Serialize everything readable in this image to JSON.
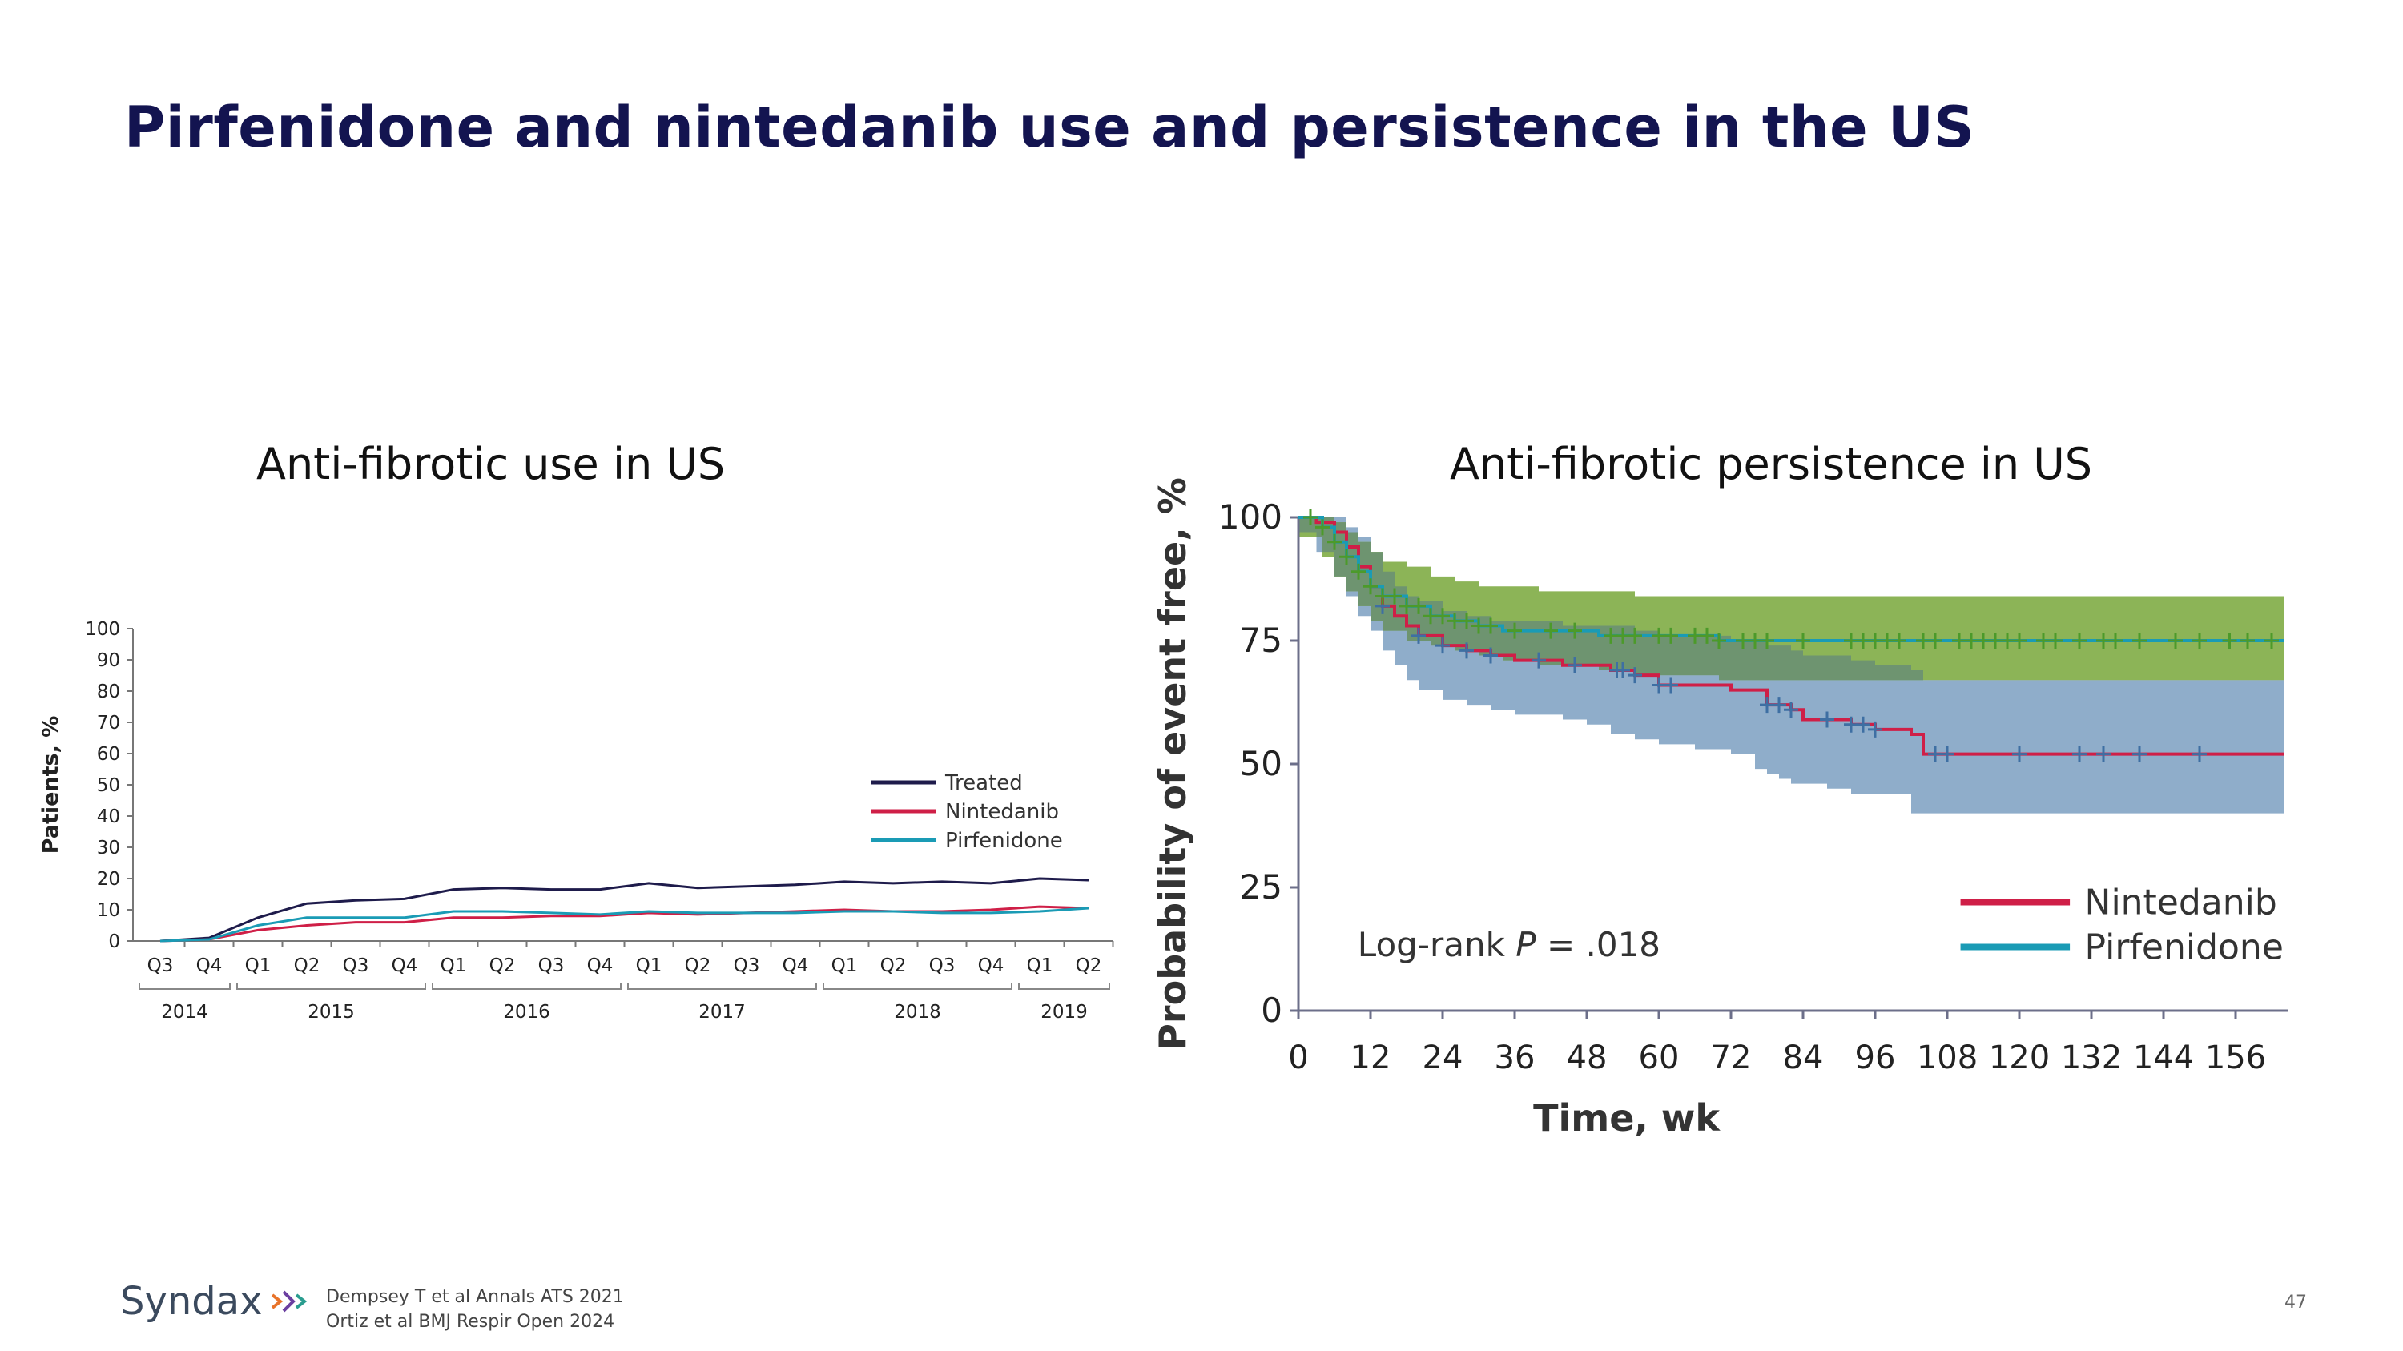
{
  "slide": {
    "title": "Pirfenidone and nintedanib use and persistence in the US",
    "page_number": "47",
    "logo_text": "Syndax",
    "references": [
      "Dempsey T et al Annals ATS 2021",
      "Ortiz et al BMJ Respir Open 2024"
    ]
  },
  "panels": {
    "left_title": "Anti-fibrotic use in US",
    "right_title": "Anti-fibrotic persistence in US"
  },
  "colors": {
    "title": "#131450",
    "treated": "#1e1b4b",
    "nintedanib": "#cf1f47",
    "pirfenidone": "#1a9bb5",
    "nintedanib_ci": "#8fadca",
    "pirfenidone_ci": "#8cb457",
    "overlap_ci": "#6e9470",
    "pirf_censor": "#4c9a2a",
    "nint_censor": "#3e6fa3"
  },
  "chart_data": [
    {
      "type": "line",
      "title": "Anti-fibrotic use in US",
      "xlabel": "",
      "ylabel": "Patients, %",
      "ylim": [
        0,
        100
      ],
      "yticks": [
        0,
        10,
        20,
        30,
        40,
        50,
        60,
        70,
        80,
        90,
        100
      ],
      "categories": [
        "Q3",
        "Q4",
        "Q1",
        "Q2",
        "Q3",
        "Q4",
        "Q1",
        "Q2",
        "Q3",
        "Q4",
        "Q1",
        "Q2",
        "Q3",
        "Q4",
        "Q1",
        "Q2",
        "Q3",
        "Q4",
        "Q1",
        "Q2"
      ],
      "year_groups": [
        {
          "label": "2014",
          "start": 0,
          "end": 1
        },
        {
          "label": "2015",
          "start": 2,
          "end": 5
        },
        {
          "label": "2016",
          "start": 6,
          "end": 9
        },
        {
          "label": "2017",
          "start": 10,
          "end": 13
        },
        {
          "label": "2018",
          "start": 14,
          "end": 17
        },
        {
          "label": "2019",
          "start": 18,
          "end": 19
        }
      ],
      "legend_position": "right",
      "grid": false,
      "series": [
        {
          "name": "Treated",
          "color_key": "treated",
          "values": [
            0,
            1,
            7.5,
            12,
            13,
            13.5,
            16.5,
            17,
            16.5,
            16.5,
            18.5,
            17,
            17.5,
            18,
            19,
            18.5,
            19,
            18.5,
            20,
            19.5
          ]
        },
        {
          "name": "Nintedanib",
          "color_key": "nintedanib",
          "values": [
            0,
            0.5,
            3.5,
            5,
            6,
            6,
            7.5,
            7.5,
            8,
            8,
            9,
            8.5,
            9,
            9.5,
            10,
            9.5,
            9.5,
            10,
            11,
            10.5
          ]
        },
        {
          "name": "Pirfenidone",
          "color_key": "pirfenidone",
          "values": [
            0,
            0.5,
            5,
            7.5,
            7.5,
            7.5,
            9.5,
            9.5,
            9,
            8.5,
            9.5,
            9,
            9,
            9,
            9.5,
            9.5,
            9,
            9,
            9.5,
            10.5
          ]
        }
      ]
    },
    {
      "type": "line",
      "subtype": "kaplan-meier",
      "title": "Anti-fibrotic persistence in US",
      "xlabel": "Time, wk",
      "ylabel": "Probability of event free, %",
      "xlim": [
        0,
        164
      ],
      "ylim": [
        0,
        100
      ],
      "xticks": [
        0,
        12,
        24,
        36,
        48,
        60,
        72,
        84,
        96,
        108,
        120,
        132,
        144,
        156
      ],
      "yticks": [
        0,
        25,
        50,
        75,
        100
      ],
      "annotation": {
        "prefix": "Log-rank ",
        "italic": "P",
        "suffix": " = .018"
      },
      "legend_position": "bottom-right",
      "grid": false,
      "series": [
        {
          "name": "Nintedanib",
          "color_key": "nintedanib",
          "x": [
            0,
            3,
            6,
            8,
            10,
            12,
            14,
            16,
            18,
            20,
            24,
            28,
            32,
            36,
            40,
            44,
            48,
            52,
            56,
            60,
            66,
            72,
            76,
            78,
            80,
            82,
            84,
            88,
            92,
            96,
            100,
            102,
            104,
            110,
            120,
            130,
            140,
            150,
            164
          ],
          "y": [
            100,
            99,
            97,
            94,
            90,
            86,
            82,
            80,
            78,
            76,
            74,
            73,
            72,
            71,
            71,
            70,
            70,
            69,
            68,
            66,
            66,
            65,
            65,
            62,
            62,
            61,
            59,
            59,
            58,
            57,
            57,
            56,
            52,
            52,
            52,
            52,
            52,
            52,
            52
          ],
          "ci_lower": [
            100,
            97,
            93,
            88,
            84,
            80,
            77,
            73,
            70,
            67,
            65,
            63,
            62,
            61,
            60,
            60,
            59,
            58,
            56,
            55,
            54,
            53,
            52,
            49,
            48,
            47,
            46,
            46,
            45,
            44,
            44,
            44,
            40,
            40,
            40,
            40,
            40,
            40,
            40
          ],
          "ci_upper": [
            100,
            100,
            100,
            98,
            96,
            93,
            89,
            86,
            84,
            83,
            81,
            80,
            79,
            79,
            79,
            78,
            78,
            78,
            77,
            76,
            76,
            75,
            75,
            74,
            74,
            73,
            72,
            72,
            71,
            70,
            70,
            69,
            67,
            67,
            67,
            67,
            67,
            67,
            67
          ],
          "censored_x": [
            14,
            20,
            24,
            28,
            32,
            40,
            46,
            53,
            54,
            56,
            60,
            62,
            78,
            80,
            82,
            88,
            92,
            94,
            96,
            106,
            108,
            120,
            130,
            134,
            140,
            150
          ]
        },
        {
          "name": "Pirfenidone",
          "color_key": "pirfenidone",
          "x": [
            0,
            4,
            6,
            8,
            10,
            12,
            14,
            18,
            22,
            26,
            30,
            34,
            40,
            50,
            56,
            70,
            80,
            164
          ],
          "y": [
            100,
            98,
            95,
            92,
            89,
            86,
            84,
            82,
            80,
            79,
            78,
            77,
            77,
            76,
            76,
            75,
            75,
            75
          ],
          "ci_lower": [
            100,
            96,
            92,
            88,
            85,
            82,
            79,
            77,
            75,
            74,
            73,
            72,
            71,
            70,
            69,
            68,
            67,
            67
          ],
          "ci_upper": [
            100,
            100,
            99,
            97,
            95,
            93,
            91,
            90,
            88,
            87,
            86,
            86,
            85,
            85,
            84,
            84,
            84,
            84
          ],
          "censored_x": [
            2,
            4,
            6,
            8,
            10,
            12,
            14,
            16,
            18,
            20,
            22,
            24,
            26,
            28,
            30,
            32,
            36,
            42,
            46,
            52,
            54,
            56,
            60,
            62,
            66,
            68,
            70,
            74,
            76,
            78,
            84,
            92,
            94,
            96,
            98,
            100,
            104,
            106,
            110,
            112,
            114,
            116,
            118,
            120,
            124,
            126,
            130,
            134,
            136,
            140,
            146,
            150,
            155,
            158,
            162
          ]
        }
      ]
    }
  ]
}
